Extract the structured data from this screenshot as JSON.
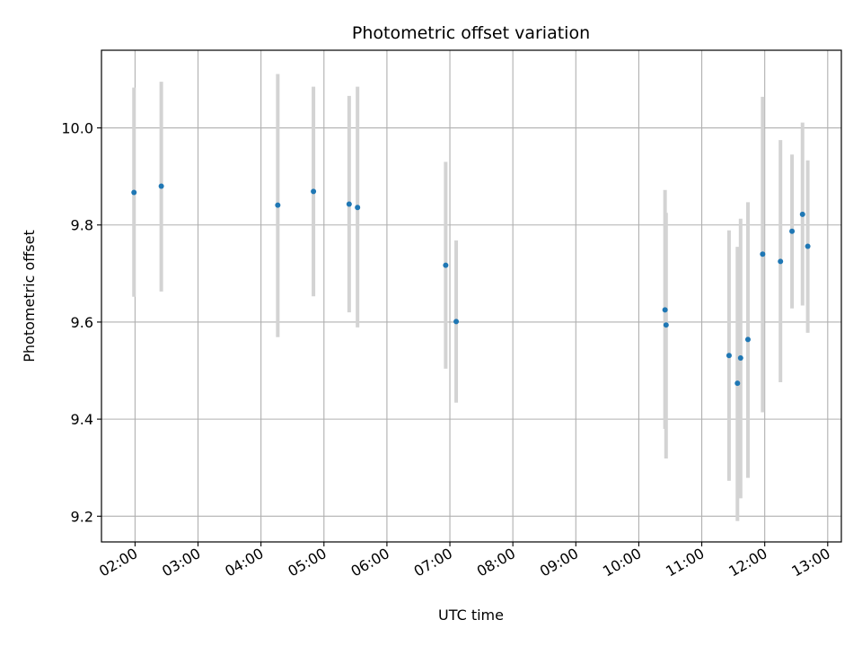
{
  "chart_data": {
    "type": "scatter",
    "title": "Photometric offset variation",
    "xlabel": "UTC time",
    "ylabel": "Photometric offset",
    "x_axis_type": "time",
    "xlim": [
      "01:28",
      "13:13"
    ],
    "ylim": [
      9.147,
      10.16
    ],
    "x_ticks": [
      "02:00",
      "03:00",
      "04:00",
      "05:00",
      "06:00",
      "07:00",
      "08:00",
      "09:00",
      "10:00",
      "11:00",
      "12:00",
      "13:00"
    ],
    "y_ticks": [
      9.2,
      9.4,
      9.6,
      9.8,
      10.0
    ],
    "y_tick_labels": [
      "9.2",
      "9.4",
      "9.6",
      "9.8",
      "10.0"
    ],
    "grid": true,
    "marker_color": "#1f77b4",
    "errorbar_color": "#d3d3d3",
    "points": [
      {
        "x": "01:59",
        "y": 9.867,
        "yerr_low": 9.652,
        "yerr_high": 10.083
      },
      {
        "x": "02:25",
        "y": 9.88,
        "yerr_low": 9.663,
        "yerr_high": 10.095
      },
      {
        "x": "04:16",
        "y": 9.841,
        "yerr_low": 9.569,
        "yerr_high": 10.111
      },
      {
        "x": "04:50",
        "y": 9.869,
        "yerr_low": 9.653,
        "yerr_high": 10.085
      },
      {
        "x": "05:24",
        "y": 9.843,
        "yerr_low": 9.62,
        "yerr_high": 10.066
      },
      {
        "x": "05:32",
        "y": 9.836,
        "yerr_low": 9.589,
        "yerr_high": 10.085
      },
      {
        "x": "06:56",
        "y": 9.717,
        "yerr_low": 9.504,
        "yerr_high": 9.93
      },
      {
        "x": "07:06",
        "y": 9.601,
        "yerr_low": 9.434,
        "yerr_high": 9.768
      },
      {
        "x": "10:25",
        "y": 9.625,
        "yerr_low": 9.38,
        "yerr_high": 9.872
      },
      {
        "x": "10:26",
        "y": 9.594,
        "yerr_low": 9.319,
        "yerr_high": 9.825
      },
      {
        "x": "11:26",
        "y": 9.531,
        "yerr_low": 9.273,
        "yerr_high": 9.789
      },
      {
        "x": "11:34",
        "y": 9.474,
        "yerr_low": 9.19,
        "yerr_high": 9.755
      },
      {
        "x": "11:37",
        "y": 9.526,
        "yerr_low": 9.237,
        "yerr_high": 9.813
      },
      {
        "x": "11:44",
        "y": 9.564,
        "yerr_low": 9.279,
        "yerr_high": 9.847
      },
      {
        "x": "11:58",
        "y": 9.74,
        "yerr_low": 9.414,
        "yerr_high": 10.064
      },
      {
        "x": "12:15",
        "y": 9.725,
        "yerr_low": 9.476,
        "yerr_high": 9.975
      },
      {
        "x": "12:26",
        "y": 9.787,
        "yerr_low": 9.628,
        "yerr_high": 9.945
      },
      {
        "x": "12:36",
        "y": 9.822,
        "yerr_low": 9.634,
        "yerr_high": 10.011
      },
      {
        "x": "12:41",
        "y": 9.756,
        "yerr_low": 9.578,
        "yerr_high": 9.933
      }
    ]
  }
}
